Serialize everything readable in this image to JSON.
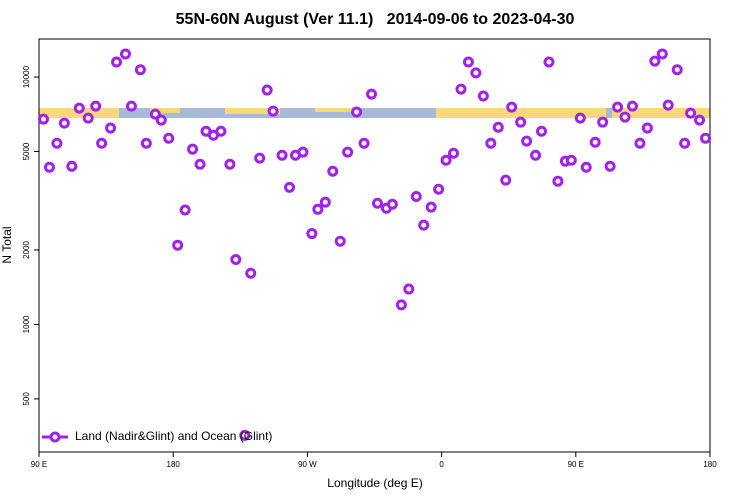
{
  "chart_data": {
    "type": "scatter",
    "title": "55N-60N August (Ver 11.1)   2014-09-06 to 2023-04-30",
    "xlabel": "Longitude (deg E)",
    "ylabel": "N Total",
    "xlim": [
      90,
      540
    ],
    "xticks": [
      {
        "value": 90,
        "label": "90 E"
      },
      180,
      {
        "value": 270,
        "label": "90 W"
      },
      {
        "value": 360,
        "label": "0"
      },
      {
        "value": 450,
        "label": "90 E"
      },
      {
        "value": 540,
        "label": "180"
      }
    ],
    "ylim": [
      305,
      14250
    ],
    "yscale": "log",
    "yticks": [
      500,
      1000,
      2000,
      5000,
      10000
    ],
    "legend": "bottom-left",
    "series": [
      {
        "name": "Land (Nadir&Glint) and Ocean (Glint)",
        "color": "#a020f0",
        "x": [
          93,
          97,
          102,
          107,
          112,
          117,
          123,
          128,
          132,
          138,
          142,
          148,
          152,
          158,
          162,
          168,
          172,
          177,
          183,
          188,
          193,
          198,
          202,
          207,
          212,
          218,
          222,
          228,
          232,
          238,
          243,
          247,
          253,
          258,
          262,
          267,
          273,
          277,
          282,
          287,
          292,
          297,
          303,
          308,
          313,
          317,
          323,
          327,
          333,
          338,
          343,
          348,
          353,
          358,
          363,
          368,
          373,
          378,
          383,
          388,
          393,
          398,
          403,
          407,
          413,
          417,
          423,
          427,
          432,
          438,
          443,
          447,
          453,
          457,
          463,
          468,
          473,
          478,
          483,
          488,
          493,
          498,
          503,
          508,
          512,
          518,
          523,
          527,
          533,
          537
        ],
        "values": [
          6760,
          4320,
          5400,
          6510,
          4360,
          7490,
          6820,
          7630,
          5400,
          6220,
          11500,
          12400,
          7630,
          10700,
          5400,
          7080,
          6700,
          5660,
          2090,
          2900,
          5110,
          4440,
          6040,
          5820,
          6040,
          4440,
          1830,
          356,
          1610,
          4700,
          8860,
          7280,
          4830,
          3580,
          4830,
          4970,
          2330,
          2920,
          3120,
          4160,
          2170,
          4970,
          7220,
          5400,
          8530,
          3090,
          2950,
          3060,
          1200,
          1390,
          3290,
          2520,
          2980,
          3520,
          4610,
          4920,
          8940,
          11500,
          10400,
          8380,
          5400,
          6270,
          3830,
          7560,
          6570,
          5510,
          4830,
          6040,
          11500,
          3790,
          4570,
          4610,
          6820,
          4320,
          5450,
          6570,
          4360,
          7560,
          6890,
          7630,
          5400,
          6220,
          11600,
          12400,
          7700,
          10700,
          5400,
          7150,
          6700,
          5660
        ]
      }
    ]
  }
}
